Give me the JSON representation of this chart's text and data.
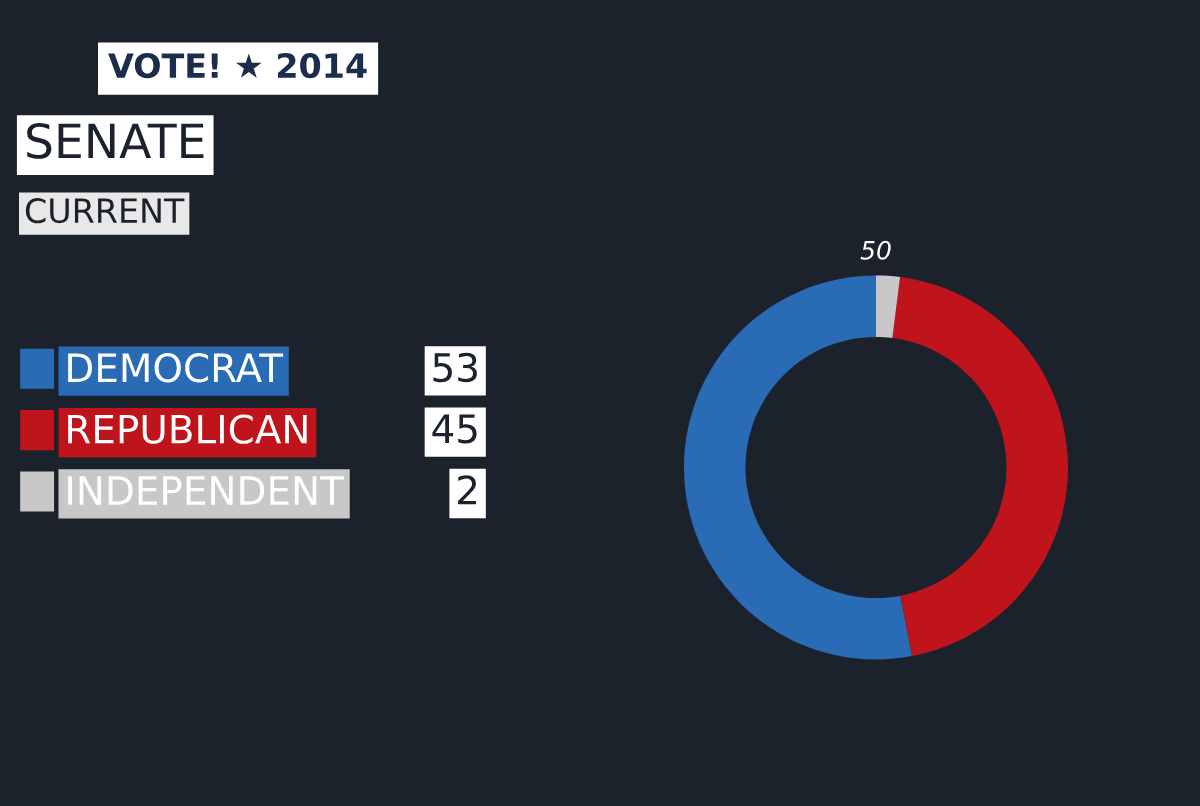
{
  "chart_data": {
    "type": "donut",
    "title": "SENATE",
    "subtitle": "CURRENT",
    "categories": [
      "DEMOCRAT",
      "REPUBLICAN",
      "INDEPENDENT"
    ],
    "values": [
      53,
      45,
      2
    ],
    "colors": [
      "#2a6bb5",
      "#c0141c",
      "#c8c8c8"
    ],
    "data_labels": true,
    "legend": "left",
    "annotations": [
      "VOTE! ★ 2014",
      "50"
    ]
  }
}
